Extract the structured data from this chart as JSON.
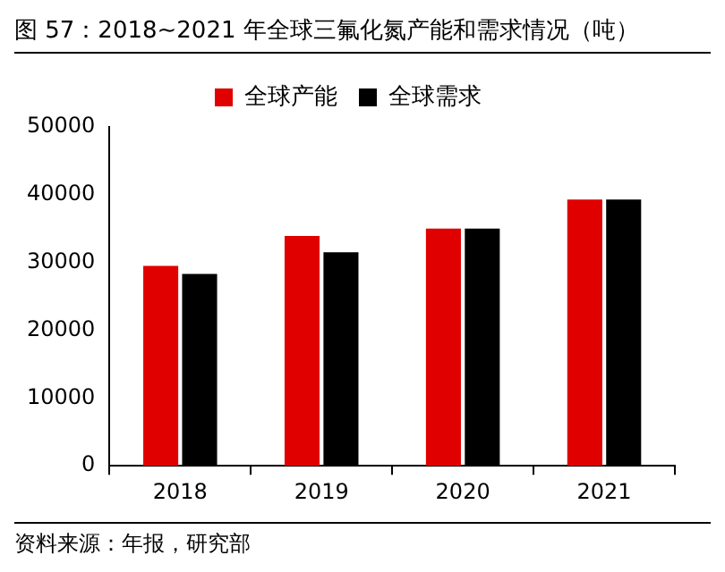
{
  "chart_data": {
    "type": "bar",
    "title": "图 57：2018~2021 年全球三氟化氮产能和需求情况（吨）",
    "categories": [
      "2018",
      "2019",
      "2020",
      "2021"
    ],
    "series": [
      {
        "name": "全球产能",
        "color": "#e00000",
        "values": [
          29500,
          33900,
          35000,
          39300
        ]
      },
      {
        "name": "全球需求",
        "color": "#000000",
        "values": [
          28300,
          31500,
          35000,
          39300
        ]
      }
    ],
    "ylim": [
      0,
      50000
    ],
    "yticks": [
      0,
      10000,
      20000,
      30000,
      40000,
      50000
    ],
    "grid": false,
    "legend": "top",
    "annotations": [
      "资料来源：年报，研究部"
    ]
  }
}
